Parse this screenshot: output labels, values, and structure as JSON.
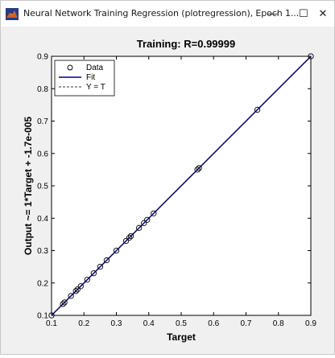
{
  "window": {
    "title": "Neural Network Training Regression (plotregression), Epoch 1...",
    "minimize_glyph": "—",
    "maximize_glyph": "☐",
    "close_glyph": "✕",
    "icon": "matlab-icon"
  },
  "chart_data": {
    "type": "scatter",
    "title": "Training: R=0.99999",
    "xlabel": "Target",
    "ylabel": "Output ~= 1*Target + -1.7e-005",
    "xlim": [
      0.1,
      0.9
    ],
    "ylim": [
      0.1,
      0.9
    ],
    "xticks": [
      "0.1",
      "0.2",
      "0.3",
      "0.4",
      "0.5",
      "0.6",
      "0.7",
      "0.8",
      "0.9"
    ],
    "yticks": [
      "0.1",
      "0.2",
      "0.3",
      "0.4",
      "0.5",
      "0.6",
      "0.7",
      "0.8",
      "0.9"
    ],
    "grid": false,
    "legend_position": "top-left",
    "legend": [
      {
        "label": "Data",
        "style": "marker"
      },
      {
        "label": "Fit",
        "style": "line"
      },
      {
        "label": "Y = T",
        "style": "dashed"
      }
    ],
    "fit": {
      "slope": 1,
      "intercept": -1.7e-05
    },
    "points": [
      [
        0.1,
        0.1
      ],
      [
        0.135,
        0.135
      ],
      [
        0.14,
        0.14
      ],
      [
        0.16,
        0.16
      ],
      [
        0.175,
        0.175
      ],
      [
        0.18,
        0.18
      ],
      [
        0.19,
        0.19
      ],
      [
        0.21,
        0.21
      ],
      [
        0.23,
        0.23
      ],
      [
        0.25,
        0.25
      ],
      [
        0.27,
        0.27
      ],
      [
        0.3,
        0.3
      ],
      [
        0.33,
        0.33
      ],
      [
        0.34,
        0.34
      ],
      [
        0.345,
        0.345
      ],
      [
        0.37,
        0.37
      ],
      [
        0.385,
        0.385
      ],
      [
        0.395,
        0.395
      ],
      [
        0.415,
        0.415
      ],
      [
        0.55,
        0.55
      ],
      [
        0.555,
        0.555
      ],
      [
        0.735,
        0.735
      ],
      [
        0.9,
        0.9
      ]
    ],
    "colors": {
      "data": "#000000",
      "fit": "#00008b",
      "identity": "#333333"
    }
  }
}
